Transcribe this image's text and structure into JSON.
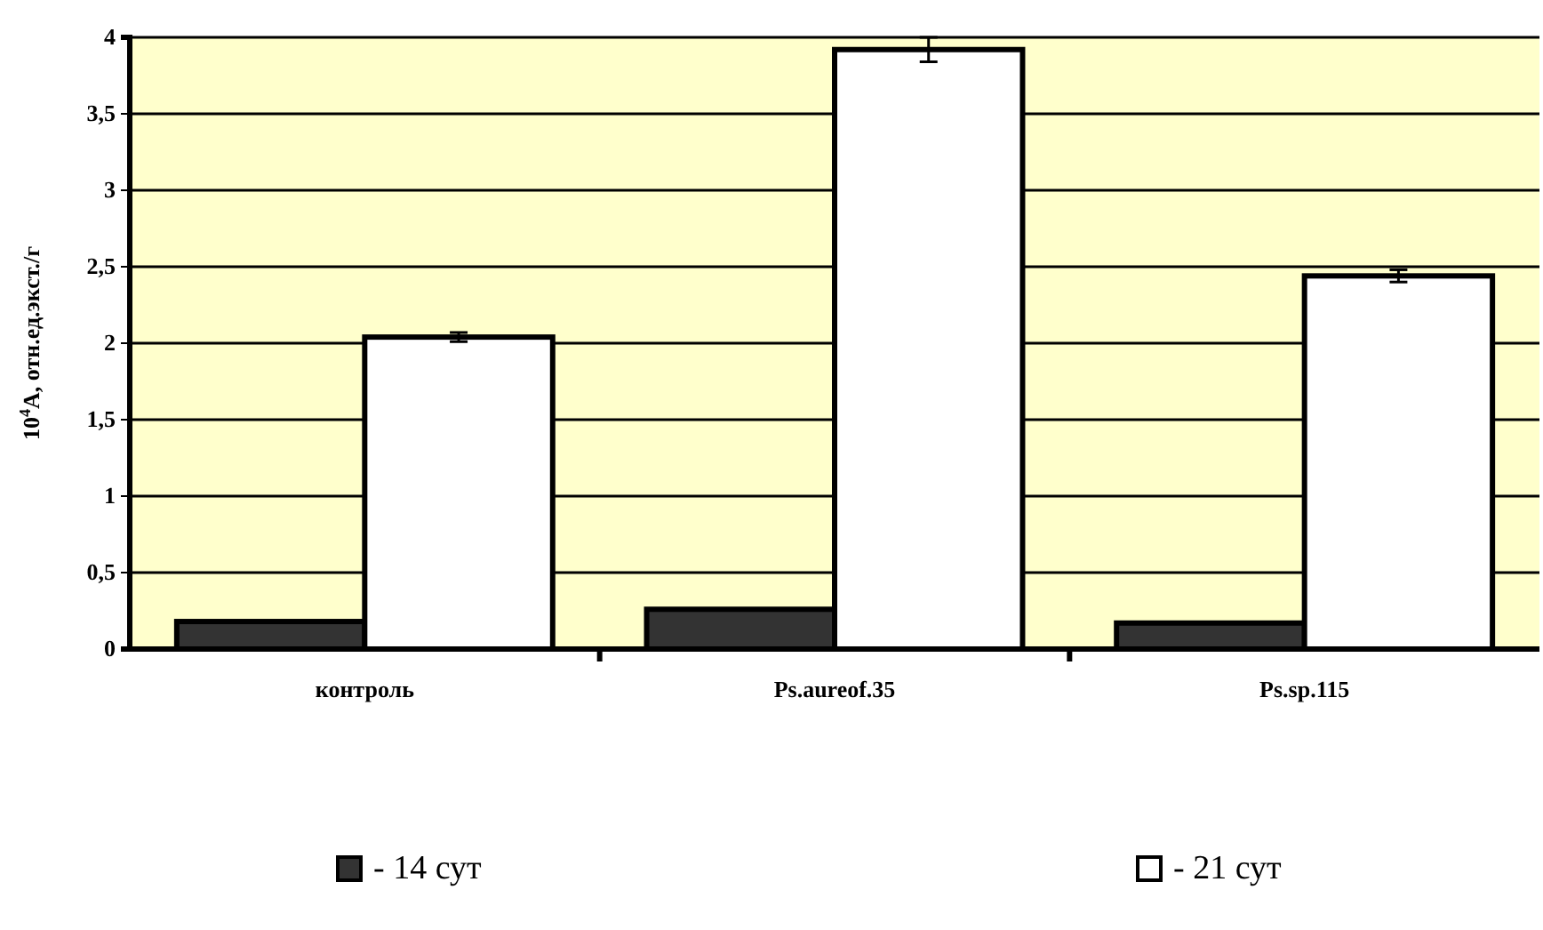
{
  "chart_data": {
    "type": "bar",
    "ylabel": "10$^{4}$A, отн.ед.экст./г",
    "categories": [
      "контроль",
      "Ps.aureof.35",
      "Ps.sp.115"
    ],
    "series": [
      {
        "name": "- 14 сут",
        "color": "#333333",
        "values": [
          0.18,
          0.26,
          0.17
        ]
      },
      {
        "name": "- 21 сут",
        "color": "#ffffff",
        "values": [
          2.04,
          3.92,
          2.44
        ],
        "errors": [
          0.03,
          0.08,
          0.04
        ]
      }
    ],
    "ylim": [
      0,
      4
    ],
    "yticks": [
      0,
      {
        "value": 0.5,
        "label": "0,5"
      },
      1,
      {
        "value": 1.5,
        "label": "1,5"
      },
      2,
      {
        "value": 2.5,
        "label": "2,5"
      },
      3,
      {
        "value": 3.5,
        "label": "3,5"
      },
      4
    ],
    "grid": "y",
    "legend": "bottom"
  }
}
